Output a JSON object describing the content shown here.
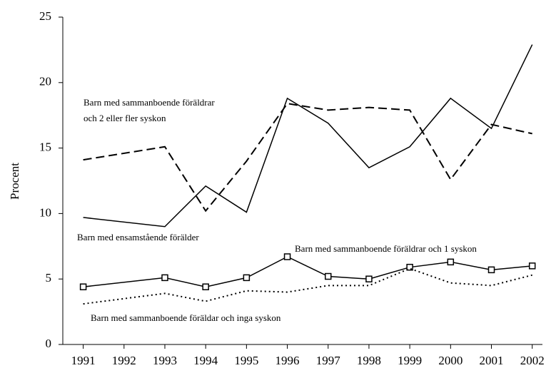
{
  "chart_data": {
    "type": "line",
    "ylabel": "Procent",
    "x": [
      1991,
      1993,
      1994,
      1995,
      1996,
      1997,
      1998,
      1999,
      2000,
      2001,
      2002
    ],
    "xlim": [
      1990.5,
      2002.25
    ],
    "xticks": [
      1991,
      1992,
      1993,
      1994,
      1995,
      1996,
      1997,
      1998,
      1999,
      2000,
      2001,
      2002
    ],
    "ylim": [
      0,
      25
    ],
    "yticks": [
      0,
      5,
      10,
      15,
      20,
      25
    ],
    "series": [
      {
        "color": "#000000",
        "style": "solid",
        "marker": "none",
        "values": [
          9.7,
          9.0,
          12.1,
          10.1,
          18.8,
          16.9,
          13.5,
          15.1,
          18.8,
          16.5,
          22.9
        ]
      },
      {
        "color": "#000000",
        "style": "dashed",
        "marker": "none",
        "values": [
          14.1,
          15.1,
          10.2,
          14.0,
          18.4,
          17.9,
          18.1,
          17.9,
          12.6,
          16.8,
          16.1
        ]
      },
      {
        "color": "#000000",
        "style": "solid",
        "marker": "square",
        "values": [
          4.4,
          5.1,
          4.4,
          5.1,
          6.7,
          5.2,
          5.0,
          5.9,
          6.3,
          5.7,
          6.0
        ]
      },
      {
        "color": "#000000",
        "style": "dotted",
        "marker": "none",
        "values": [
          3.1,
          3.9,
          3.3,
          4.1,
          4.0,
          4.5,
          4.5,
          5.8,
          4.7,
          4.5,
          5.3
        ]
      }
    ],
    "annotations": [
      "Barn med sammanboende föräldrar",
      "och 2 eller fler syskon",
      "Barn med ensamstående förälder",
      "Barn med sammanboende föräldrar och 1 syskon",
      "Barn med sammanboende föräldar och inga syskon"
    ]
  }
}
